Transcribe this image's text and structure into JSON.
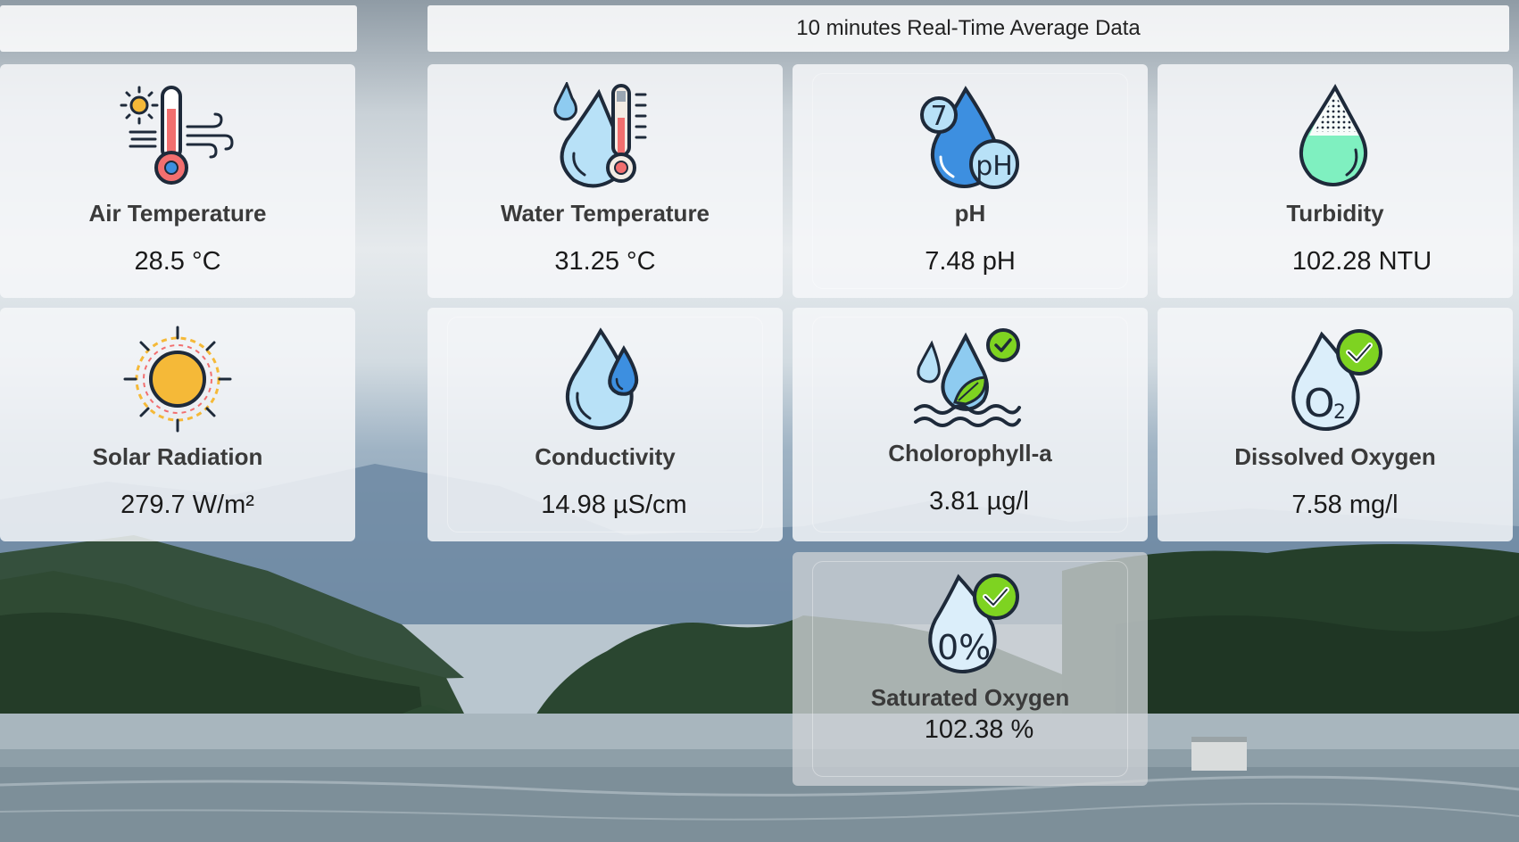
{
  "header": {
    "left_title": "",
    "title": "10 minutes Real-Time Average Data"
  },
  "sensors": {
    "air_temperature": {
      "label": "Air Temperature",
      "value": "28.5 °C",
      "icon": "air-temperature-icon"
    },
    "water_temperature": {
      "label": "Water Temperature",
      "value": "31.25 °C",
      "icon": "water-temperature-icon"
    },
    "ph": {
      "label": "pH",
      "value": "7.48 pH",
      "icon": "ph-drop-icon"
    },
    "turbidity": {
      "label": "Turbidity",
      "value": "102.28 NTU",
      "icon": "turbidity-drop-icon"
    },
    "solar_radiation": {
      "label": "Solar Radiation",
      "value": "279.7 W/m²",
      "icon": "sun-icon"
    },
    "conductivity": {
      "label": "Conductivity",
      "value": "14.98 µS/cm",
      "icon": "water-drops-icon"
    },
    "chlorophyll": {
      "label": "Cholorophyll-a",
      "value": "3.81 µg/l",
      "icon": "chlorophyll-icon"
    },
    "dissolved_oxygen": {
      "label": "Dissolved Oxygen",
      "value": "7.58 mg/l",
      "icon": "o2-drop-icon"
    },
    "saturated_oxygen": {
      "label": "Saturated Oxygen",
      "value": "102.38 %",
      "icon": "saturation-drop-icon"
    }
  },
  "icon_text": {
    "ph_number": "7",
    "ph_label": "pH",
    "o2_symbol": "O",
    "o2_subscript": "2",
    "saturation_symbol": "0%"
  },
  "colors": {
    "drop_light": "#b8e1f7",
    "drop_mid": "#8ecbf0",
    "drop_dark": "#3d8fe0",
    "thermometer_red": "#f26f6f",
    "sun_yellow": "#f5b938",
    "turbidity_green": "#7ff0c0",
    "check_green": "#7ed321",
    "outline": "#1e2a3a"
  }
}
